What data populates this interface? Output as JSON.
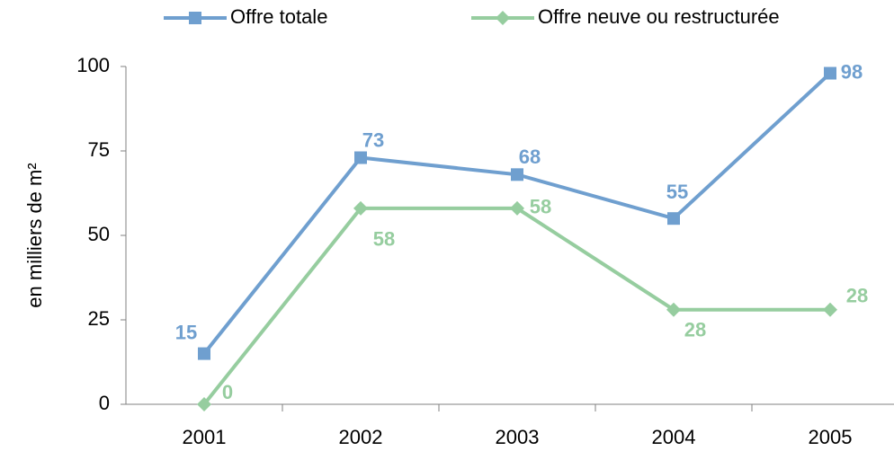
{
  "chart_data": {
    "type": "line",
    "y_label": "en milliers de m²",
    "categories": [
      "2001",
      "2002",
      "2003",
      "2004",
      "2005"
    ],
    "series": [
      {
        "name": "Offre totale",
        "color": "#6f9fcf",
        "marker": "square",
        "values": [
          15,
          73,
          68,
          55,
          98
        ]
      },
      {
        "name": "Offre neuve ou restructurée",
        "color": "#96cd9f",
        "marker": "diamond",
        "values": [
          0,
          58,
          58,
          28,
          28
        ]
      }
    ],
    "ylim": [
      0,
      100
    ],
    "yticks": [
      0,
      25,
      50,
      75,
      100
    ],
    "grid": false,
    "legend": "top"
  }
}
